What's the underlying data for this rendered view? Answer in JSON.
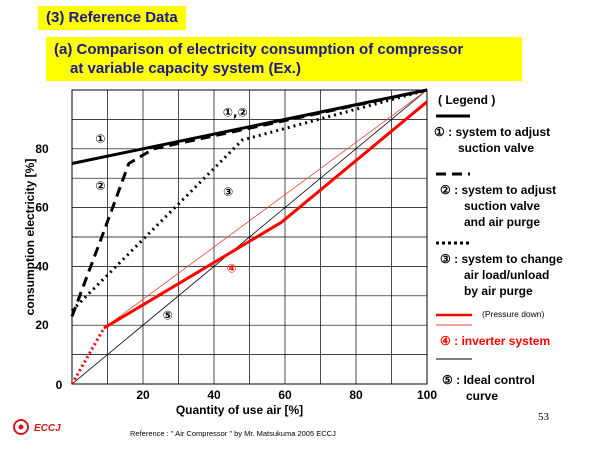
{
  "section_title": "(3) Reference Data",
  "chart_title_line1": "(a) Comparison of electricity consumption of compressor",
  "chart_title_line2": "at variable capacity system (Ex.)",
  "legend": {
    "heading": "( Legend )",
    "entries": [
      {
        "marker": "①",
        "text": "system to adjust\nsuction valve"
      },
      {
        "marker": "②",
        "text": "system to adjust\nsuction valve\nand air purge"
      },
      {
        "marker": "③",
        "text": "system to change\nair load/unload\nby air purge"
      },
      {
        "marker": "④",
        "text": "inverter system",
        "note": "(Pressure down)"
      },
      {
        "marker": "⑤",
        "text": "Ideal control\ncurve"
      }
    ]
  },
  "colors": {
    "title_bg": "#ffff00",
    "title_text": "#1a1a8c",
    "inverter": "#ff0000",
    "thin_red": "#e84a3a",
    "black": "#000000"
  },
  "chart_data": {
    "type": "line",
    "xlabel": "Quantity of use air [%]",
    "ylabel": "consumption electricity [%]",
    "xlim": [
      0,
      100
    ],
    "ylim": [
      0,
      100
    ],
    "x_ticks": [
      "20",
      "40",
      "60",
      "80",
      "100"
    ],
    "y_ticks": [
      "0",
      "20",
      "40",
      "60",
      "80"
    ],
    "x_tick_values": [
      20,
      40,
      60,
      80,
      100
    ],
    "y_tick_values": [
      0,
      20,
      40,
      60,
      80
    ],
    "zero_label": "0",
    "grid": true,
    "series": [
      {
        "name": "①",
        "style": "solid-thick",
        "color": "#000000",
        "x": [
          0,
          100
        ],
        "y": [
          75,
          100
        ]
      },
      {
        "name": "②",
        "style": "dashed",
        "color": "#000000",
        "x": [
          0,
          9,
          16,
          23,
          100
        ],
        "y": [
          23,
          52,
          75,
          80,
          100
        ]
      },
      {
        "name": "③",
        "style": "dotted",
        "color": "#000000",
        "x": [
          0,
          48,
          100
        ],
        "y": [
          25,
          83,
          100
        ]
      },
      {
        "name": "④",
        "style": "solid-thick",
        "color": "#ff0000",
        "x": [
          9,
          59,
          100
        ],
        "y": [
          19,
          55,
          96
        ]
      },
      {
        "name": "④ (start)",
        "style": "dotted-red",
        "color": "#ff0000",
        "x": [
          0,
          9
        ],
        "y": [
          0,
          19
        ]
      },
      {
        "name": "⑤",
        "style": "thin",
        "color": "#000000",
        "x": [
          0,
          100
        ],
        "y": [
          0,
          100
        ]
      },
      {
        "name": "reference",
        "style": "thin-red",
        "color": "#e84a3a",
        "x": [
          9,
          100
        ],
        "y": [
          19,
          100
        ]
      }
    ],
    "annotations": [
      {
        "text": "①",
        "x": 8,
        "y": 82,
        "color": "#000000"
      },
      {
        "text": "②",
        "x": 8,
        "y": 66,
        "color": "#000000"
      },
      {
        "text": "①,②",
        "x": 46,
        "y": 91,
        "color": "#000000"
      },
      {
        "text": "③",
        "x": 44,
        "y": 64,
        "color": "#000000"
      },
      {
        "text": "④",
        "x": 45,
        "y": 38,
        "color": "#ff0000"
      },
      {
        "text": "⑤",
        "x": 27,
        "y": 22,
        "color": "#000000"
      }
    ]
  },
  "footer": {
    "reference": "Reference : \" Air Compressor \" by Mr. Matsukuma 2005 ECCJ",
    "page_number": "53",
    "logo_text": "ECCJ"
  }
}
